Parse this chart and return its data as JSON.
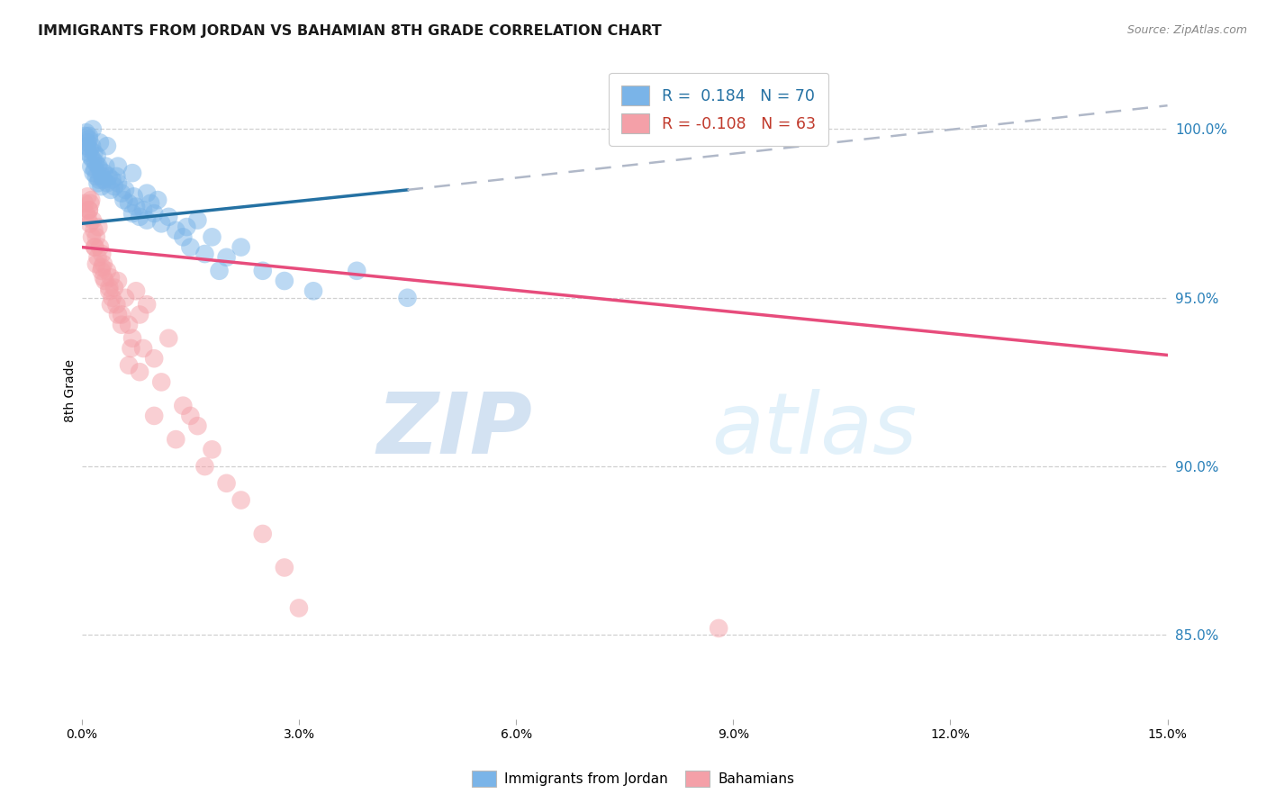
{
  "title": "IMMIGRANTS FROM JORDAN VS BAHAMIAN 8TH GRADE CORRELATION CHART",
  "source": "Source: ZipAtlas.com",
  "ylabel": "8th Grade",
  "yticks": [
    85.0,
    90.0,
    95.0,
    100.0
  ],
  "ytick_labels": [
    "85.0%",
    "90.0%",
    "95.0%",
    "100.0%"
  ],
  "xlim": [
    0.0,
    15.0
  ],
  "ylim": [
    82.5,
    102.0
  ],
  "color_blue": "#7ab4e8",
  "color_pink": "#f4a0a8",
  "trendline_blue": "#2471a3",
  "trendline_pink": "#e74c7c",
  "trendline_dash": "#b0b8c8",
  "jordan_x": [
    0.05,
    0.07,
    0.08,
    0.09,
    0.1,
    0.11,
    0.12,
    0.13,
    0.14,
    0.15,
    0.16,
    0.17,
    0.18,
    0.19,
    0.2,
    0.21,
    0.22,
    0.23,
    0.24,
    0.25,
    0.27,
    0.28,
    0.3,
    0.31,
    0.33,
    0.35,
    0.37,
    0.4,
    0.42,
    0.45,
    0.48,
    0.5,
    0.55,
    0.58,
    0.6,
    0.65,
    0.7,
    0.72,
    0.75,
    0.8,
    0.85,
    0.9,
    0.95,
    1.0,
    1.1,
    1.2,
    1.3,
    1.4,
    1.5,
    1.6,
    1.7,
    1.8,
    1.9,
    2.0,
    2.2,
    2.5,
    2.8,
    3.2,
    3.8,
    4.5,
    0.06,
    0.1,
    0.15,
    0.25,
    0.35,
    0.5,
    0.7,
    0.9,
    1.05,
    1.45
  ],
  "jordan_y": [
    99.8,
    99.5,
    99.6,
    99.3,
    99.7,
    99.4,
    99.2,
    98.9,
    99.5,
    99.1,
    98.7,
    99.3,
    98.8,
    99.0,
    98.6,
    99.2,
    98.4,
    98.9,
    98.5,
    98.8,
    98.3,
    98.6,
    98.5,
    98.7,
    98.9,
    98.4,
    98.6,
    98.2,
    98.5,
    98.3,
    98.6,
    98.4,
    98.1,
    97.9,
    98.2,
    97.8,
    97.5,
    98.0,
    97.7,
    97.4,
    97.6,
    97.3,
    97.8,
    97.5,
    97.2,
    97.4,
    97.0,
    96.8,
    96.5,
    97.3,
    96.3,
    96.8,
    95.8,
    96.2,
    96.5,
    95.8,
    95.5,
    95.2,
    95.8,
    95.0,
    99.9,
    99.8,
    100.0,
    99.6,
    99.5,
    98.9,
    98.7,
    98.1,
    97.9,
    97.1
  ],
  "bahamian_x": [
    0.04,
    0.06,
    0.08,
    0.1,
    0.11,
    0.13,
    0.14,
    0.15,
    0.17,
    0.18,
    0.2,
    0.22,
    0.23,
    0.25,
    0.27,
    0.28,
    0.3,
    0.32,
    0.35,
    0.38,
    0.4,
    0.42,
    0.45,
    0.48,
    0.5,
    0.55,
    0.6,
    0.65,
    0.7,
    0.75,
    0.8,
    0.85,
    0.9,
    1.0,
    1.1,
    1.2,
    1.4,
    1.6,
    1.8,
    2.0,
    2.5,
    3.0,
    0.08,
    0.12,
    0.2,
    0.3,
    0.4,
    0.55,
    0.65,
    0.8,
    1.0,
    1.3,
    1.7,
    2.2,
    0.1,
    0.18,
    0.28,
    0.38,
    0.5,
    0.68,
    1.5,
    8.8,
    2.8
  ],
  "bahamian_y": [
    97.8,
    97.5,
    98.0,
    97.6,
    97.2,
    97.9,
    96.8,
    97.3,
    97.0,
    96.5,
    96.8,
    96.2,
    97.1,
    96.5,
    95.8,
    96.3,
    96.0,
    95.5,
    95.8,
    95.2,
    95.6,
    95.0,
    95.3,
    94.8,
    95.5,
    94.5,
    95.0,
    94.2,
    93.8,
    95.2,
    94.5,
    93.5,
    94.8,
    93.2,
    92.5,
    93.8,
    91.8,
    91.2,
    90.5,
    89.5,
    88.0,
    85.8,
    97.4,
    97.8,
    96.0,
    95.6,
    94.8,
    94.2,
    93.0,
    92.8,
    91.5,
    90.8,
    90.0,
    89.0,
    97.6,
    96.5,
    95.9,
    95.3,
    94.5,
    93.5,
    91.5,
    85.2,
    87.0
  ],
  "trend_blue_x0": 0.0,
  "trend_blue_y0": 97.2,
  "trend_blue_x1": 4.5,
  "trend_blue_y1": 98.2,
  "trend_blue_dash_x0": 4.5,
  "trend_blue_dash_y0": 98.2,
  "trend_blue_dash_x1": 15.0,
  "trend_blue_dash_y1": 100.7,
  "trend_pink_x0": 0.0,
  "trend_pink_y0": 96.5,
  "trend_pink_x1": 15.0,
  "trend_pink_y1": 93.3
}
